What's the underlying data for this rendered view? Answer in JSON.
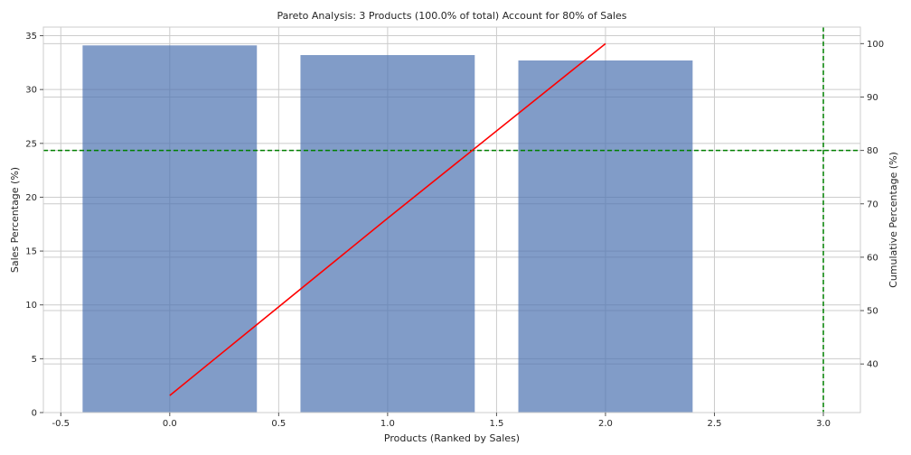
{
  "chart_data": {
    "type": "bar",
    "title": "Pareto Analysis: 3 Products (100.0% of total) Account for 80% of Sales",
    "xlabel": "Products (Ranked by Sales)",
    "ylabel": "Sales Percentage (%)",
    "y2label": "Cumulative Percentage (%)",
    "x": [
      0,
      1,
      2
    ],
    "bar_width": 0.8,
    "values": [
      34.1,
      33.2,
      32.7
    ],
    "cumulative": [
      34.1,
      67.3,
      100.0
    ],
    "xlim": [
      -0.58,
      3.17
    ],
    "ylim": [
      0,
      35.8
    ],
    "y2lim": [
      30.9,
      103.1
    ],
    "xticks": [
      -0.5,
      0.0,
      0.5,
      1.0,
      1.5,
      2.0,
      2.5,
      3.0
    ],
    "xtick_labels": [
      "-0.5",
      "0.0",
      "0.5",
      "1.0",
      "1.5",
      "2.0",
      "2.5",
      "3.0"
    ],
    "yticks": [
      0,
      5,
      10,
      15,
      20,
      25,
      30,
      35
    ],
    "ytick_labels": [
      "0",
      "5",
      "10",
      "15",
      "20",
      "25",
      "30",
      "35"
    ],
    "y2ticks": [
      40,
      50,
      60,
      70,
      80,
      90,
      100
    ],
    "y2tick_labels": [
      "40",
      "50",
      "60",
      "70",
      "80",
      "90",
      "100"
    ],
    "threshold_y2": 80,
    "threshold_x": 3.0,
    "grid": true,
    "colors": {
      "bar": "#4c72b0",
      "line": "#ff0000",
      "reference": "#008000",
      "grid": "#cccccc",
      "spine": "#cccccc"
    }
  }
}
